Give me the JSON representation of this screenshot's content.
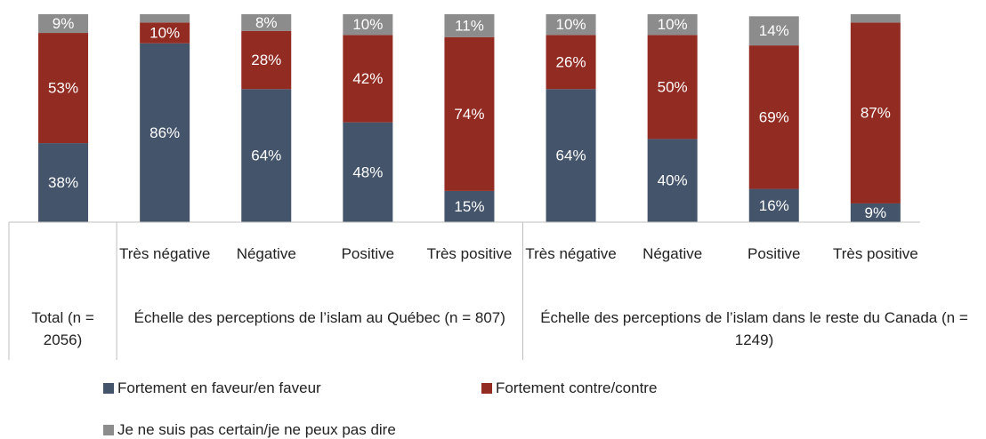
{
  "chart_data": {
    "type": "stacked_bar",
    "groups": [
      {
        "name": "Total (n = 2056)",
        "categories": [
          null
        ]
      },
      {
        "name": "Échelle des perceptions de l’islam au Québec (n = 807)",
        "categories": [
          "Très négative",
          "Négative",
          "Positive",
          "Très positive"
        ]
      },
      {
        "name": "Échelle des perceptions de l’islam dans le reste du Canada (n = 1249)",
        "categories": [
          "Très négative",
          "Négative",
          "Positive",
          "Très positive"
        ]
      }
    ],
    "series": [
      {
        "name": "Fortement en faveur/en faveur",
        "color": "#44546a",
        "values": [
          38,
          86,
          64,
          48,
          15,
          64,
          40,
          16,
          9
        ],
        "value_labels": [
          "38%",
          "86%",
          "64%",
          "48%",
          "15%",
          "64%",
          "40%",
          "16%",
          "9%"
        ]
      },
      {
        "name": "Fortement contre/contre",
        "color": "#922b22",
        "values": [
          53,
          10,
          28,
          42,
          74,
          26,
          50,
          69,
          87
        ],
        "value_labels": [
          "53%",
          "10%",
          "28%",
          "42%",
          "74%",
          "26%",
          "50%",
          "69%",
          "87%"
        ]
      },
      {
        "name": "Je ne suis pas certain/je ne peux pas dire",
        "color": "#8c8c8c",
        "values": [
          9,
          4,
          8,
          10,
          11,
          10,
          10,
          14,
          4
        ],
        "value_labels": [
          "9%",
          null,
          "8%",
          "10%",
          "11%",
          "10%",
          "10%",
          "14%",
          null
        ]
      }
    ],
    "ylim": [
      0,
      100
    ]
  }
}
